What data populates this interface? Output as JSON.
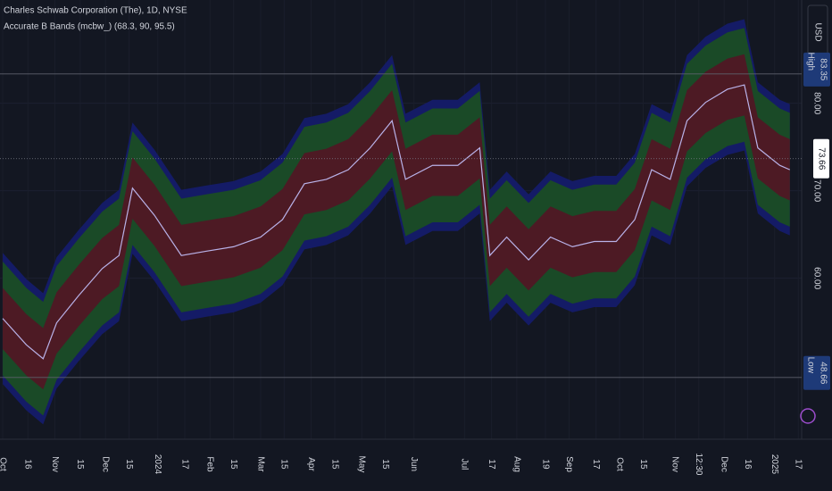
{
  "chart_data": {
    "type": "line",
    "title": "Charles Schwab Corporation (The), 1D, NYSE",
    "subtitle": "Accurate B Bands (mcbw_) (68.3, 90, 95.5)",
    "currency": "USD",
    "x": [
      0,
      14,
      24,
      32,
      45,
      59,
      69,
      77,
      90,
      106,
      121,
      137,
      153,
      166,
      179,
      192,
      205,
      218,
      231,
      239,
      255,
      270,
      283,
      289,
      299,
      312,
      325,
      338,
      351,
      364,
      375,
      385,
      396,
      406,
      417,
      430,
      440,
      448,
      461,
      467
    ],
    "series": [
      {
        "color": "#b9b2e8",
        "values": [
          55.4,
          52.4,
          50.8,
          54.9,
          58.0,
          61.1,
          62.6,
          70.3,
          67.2,
          62.6,
          63.1,
          63.6,
          64.7,
          66.7,
          70.8,
          71.3,
          72.4,
          74.9,
          78.0,
          71.3,
          72.9,
          72.9,
          74.9,
          62.6,
          64.7,
          62.1,
          64.7,
          63.6,
          64.2,
          64.2,
          66.7,
          72.4,
          71.3,
          78.0,
          80.1,
          81.6,
          82.1,
          74.9,
          72.9,
          72.4
        ]
      }
    ],
    "bands": [
      {
        "color": "#141b66",
        "upper": [
          62.9,
          59.9,
          58.3,
          62.4,
          65.5,
          68.6,
          70.1,
          77.8,
          74.7,
          70.1,
          70.6,
          71.1,
          72.2,
          74.2,
          78.3,
          78.8,
          79.9,
          82.4,
          85.5,
          78.8,
          80.4,
          80.4,
          82.4,
          70.1,
          72.2,
          69.6,
          72.2,
          71.1,
          71.7,
          71.7,
          74.2,
          79.9,
          78.8,
          85.5,
          87.6,
          89.1,
          89.6,
          82.4,
          80.4,
          79.9
        ],
        "lower": [
          47.9,
          44.9,
          43.3,
          47.4,
          50.5,
          53.6,
          55.1,
          62.8,
          59.7,
          55.1,
          55.6,
          56.1,
          57.2,
          59.2,
          63.3,
          63.8,
          64.9,
          67.4,
          70.5,
          63.8,
          65.4,
          65.4,
          67.4,
          55.1,
          57.2,
          54.6,
          57.2,
          56.1,
          56.7,
          56.7,
          59.2,
          64.9,
          63.8,
          70.5,
          72.6,
          74.1,
          74.6,
          67.4,
          65.4,
          64.9
        ]
      },
      {
        "color": "#1a4a27",
        "upper": [
          61.9,
          58.9,
          57.3,
          61.4,
          64.5,
          67.6,
          69.1,
          76.8,
          73.7,
          69.1,
          69.6,
          70.1,
          71.2,
          73.2,
          77.3,
          77.8,
          78.9,
          81.4,
          84.5,
          77.8,
          79.4,
          79.4,
          81.4,
          69.1,
          71.2,
          68.6,
          71.2,
          70.1,
          70.7,
          70.7,
          73.2,
          78.9,
          77.8,
          84.5,
          86.6,
          88.1,
          88.6,
          81.4,
          79.4,
          78.9
        ],
        "lower": [
          48.9,
          45.9,
          44.3,
          48.4,
          51.5,
          54.6,
          56.1,
          63.8,
          60.7,
          56.1,
          56.6,
          57.1,
          58.2,
          60.2,
          64.3,
          64.8,
          65.9,
          68.4,
          71.5,
          64.8,
          66.4,
          66.4,
          68.4,
          56.1,
          58.2,
          55.6,
          58.2,
          57.1,
          57.7,
          57.7,
          60.2,
          65.9,
          64.8,
          71.5,
          73.6,
          75.1,
          75.6,
          68.4,
          66.4,
          65.9
        ]
      },
      {
        "color": "#4d1a24",
        "upper": [
          58.9,
          55.9,
          54.3,
          58.4,
          61.5,
          64.6,
          66.1,
          73.8,
          70.7,
          66.1,
          66.6,
          67.1,
          68.2,
          70.2,
          74.3,
          74.8,
          75.9,
          78.4,
          81.5,
          74.8,
          76.4,
          76.4,
          78.4,
          66.1,
          68.2,
          65.6,
          68.2,
          67.1,
          67.7,
          67.7,
          70.2,
          75.9,
          74.8,
          81.5,
          83.6,
          85.1,
          85.6,
          78.4,
          76.4,
          75.9
        ],
        "lower": [
          51.9,
          48.9,
          47.3,
          51.4,
          54.5,
          57.6,
          59.1,
          66.8,
          63.7,
          59.1,
          59.6,
          60.1,
          61.2,
          63.2,
          67.3,
          67.8,
          68.9,
          71.4,
          74.5,
          67.8,
          69.4,
          69.4,
          71.4,
          59.1,
          61.2,
          58.6,
          61.2,
          60.1,
          60.7,
          60.7,
          63.2,
          68.9,
          67.8,
          74.5,
          76.6,
          78.1,
          78.6,
          71.4,
          69.4,
          68.9
        ]
      }
    ],
    "price_lines": [
      {
        "label": "High",
        "value": 83.35,
        "color": "#1e3a78"
      },
      {
        "label": "Low",
        "value": 48.66,
        "color": "#1e3a78"
      }
    ],
    "last_price": 73.66,
    "xlim": [
      -1.6,
      474
    ],
    "ylim": [
      41.6,
      91.8
    ],
    "yticks": [
      {
        "value": 60,
        "label": "60.00"
      },
      {
        "value": 70,
        "label": "70.00"
      },
      {
        "value": 80,
        "label": "80.00"
      }
    ],
    "xticks": [
      {
        "value": 0,
        "label": "Oct"
      },
      {
        "value": 15,
        "label": "16"
      },
      {
        "value": 31,
        "label": "Nov"
      },
      {
        "value": 46,
        "label": "15"
      },
      {
        "value": 61,
        "label": "Dec"
      },
      {
        "value": 75,
        "label": "15"
      },
      {
        "value": 92,
        "label": "2024"
      },
      {
        "value": 108,
        "label": "17"
      },
      {
        "value": 123,
        "label": "Feb"
      },
      {
        "value": 137,
        "label": "15"
      },
      {
        "value": 153,
        "label": "Mar"
      },
      {
        "value": 167,
        "label": "15"
      },
      {
        "value": 183,
        "label": "Apr"
      },
      {
        "value": 197,
        "label": "15"
      },
      {
        "value": 213,
        "label": "May"
      },
      {
        "value": 227,
        "label": "15"
      },
      {
        "value": 244,
        "label": "Jun"
      },
      {
        "value": 274,
        "label": "Jul"
      },
      {
        "value": 290,
        "label": "17"
      },
      {
        "value": 305,
        "label": "Aug"
      },
      {
        "value": 322,
        "label": "19"
      },
      {
        "value": 336,
        "label": "Sep"
      },
      {
        "value": 352,
        "label": "17"
      },
      {
        "value": 366,
        "label": "Oct"
      },
      {
        "value": 380,
        "label": "15"
      },
      {
        "value": 399,
        "label": "Nov"
      },
      {
        "value": 413,
        "label": "12:30"
      },
      {
        "value": 428,
        "label": "Dec"
      },
      {
        "value": 442,
        "label": "16"
      },
      {
        "value": 458,
        "label": "2025"
      },
      {
        "value": 472,
        "label": "17"
      }
    ]
  }
}
